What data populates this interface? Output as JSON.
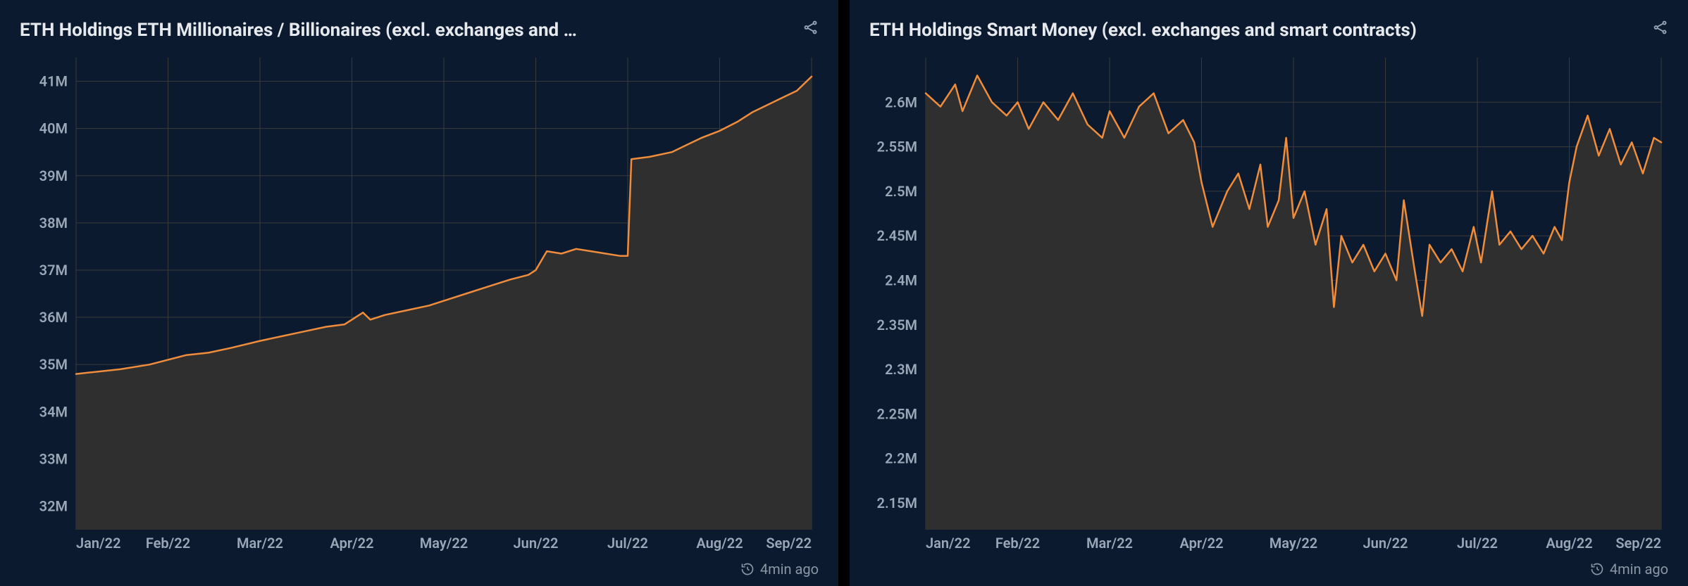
{
  "panels": [
    {
      "title": "ETH Holdings ETH Millionaires / Billionaires (excl. exchanges and …",
      "timestamp": "4min ago",
      "chart": {
        "type": "area",
        "line_color": "#f08d3c",
        "area_color": "#2f2f2f",
        "background_color": "#0b1a2e",
        "grid_color": "#3a3a3a",
        "axis_label_color": "#9aa7b8",
        "axis_fontsize": 20,
        "line_width": 2.5,
        "ylim": [
          31500000,
          41500000
        ],
        "yticks": [
          32000000,
          33000000,
          34000000,
          35000000,
          36000000,
          37000000,
          38000000,
          39000000,
          40000000,
          41000000
        ],
        "ytick_labels": [
          "32M",
          "33M",
          "34M",
          "35M",
          "36M",
          "37M",
          "38M",
          "39M",
          "40M",
          "41M"
        ],
        "x_labels": [
          "Jan/22",
          "Feb/22",
          "Mar/22",
          "Apr/22",
          "May/22",
          "Jun/22",
          "Jul/22",
          "Aug/22",
          "Sep/22"
        ],
        "series": [
          {
            "x": 0.0,
            "y": 34800000
          },
          {
            "x": 0.03,
            "y": 34850000
          },
          {
            "x": 0.06,
            "y": 34900000
          },
          {
            "x": 0.1,
            "y": 35000000
          },
          {
            "x": 0.125,
            "y": 35100000
          },
          {
            "x": 0.15,
            "y": 35200000
          },
          {
            "x": 0.18,
            "y": 35250000
          },
          {
            "x": 0.21,
            "y": 35350000
          },
          {
            "x": 0.25,
            "y": 35500000
          },
          {
            "x": 0.28,
            "y": 35600000
          },
          {
            "x": 0.31,
            "y": 35700000
          },
          {
            "x": 0.34,
            "y": 35800000
          },
          {
            "x": 0.365,
            "y": 35850000
          },
          {
            "x": 0.375,
            "y": 35950000
          },
          {
            "x": 0.39,
            "y": 36100000
          },
          {
            "x": 0.4,
            "y": 35950000
          },
          {
            "x": 0.42,
            "y": 36050000
          },
          {
            "x": 0.45,
            "y": 36150000
          },
          {
            "x": 0.48,
            "y": 36250000
          },
          {
            "x": 0.5,
            "y": 36350000
          },
          {
            "x": 0.53,
            "y": 36500000
          },
          {
            "x": 0.56,
            "y": 36650000
          },
          {
            "x": 0.59,
            "y": 36800000
          },
          {
            "x": 0.615,
            "y": 36900000
          },
          {
            "x": 0.625,
            "y": 37000000
          },
          {
            "x": 0.64,
            "y": 37400000
          },
          {
            "x": 0.66,
            "y": 37350000
          },
          {
            "x": 0.68,
            "y": 37450000
          },
          {
            "x": 0.7,
            "y": 37400000
          },
          {
            "x": 0.72,
            "y": 37350000
          },
          {
            "x": 0.74,
            "y": 37300000
          },
          {
            "x": 0.75,
            "y": 37300000
          },
          {
            "x": 0.755,
            "y": 39350000
          },
          {
            "x": 0.78,
            "y": 39400000
          },
          {
            "x": 0.81,
            "y": 39500000
          },
          {
            "x": 0.83,
            "y": 39650000
          },
          {
            "x": 0.85,
            "y": 39800000
          },
          {
            "x": 0.875,
            "y": 39950000
          },
          {
            "x": 0.9,
            "y": 40150000
          },
          {
            "x": 0.92,
            "y": 40350000
          },
          {
            "x": 0.94,
            "y": 40500000
          },
          {
            "x": 0.96,
            "y": 40650000
          },
          {
            "x": 0.98,
            "y": 40800000
          },
          {
            "x": 1.0,
            "y": 41100000
          }
        ]
      }
    },
    {
      "title": "ETH Holdings Smart Money (excl. exchanges and smart contracts)",
      "timestamp": "4min ago",
      "chart": {
        "type": "area",
        "line_color": "#f08d3c",
        "area_color": "#2f2f2f",
        "background_color": "#0b1a2e",
        "grid_color": "#3a3a3a",
        "axis_label_color": "#9aa7b8",
        "axis_fontsize": 20,
        "line_width": 2.5,
        "ylim": [
          2120000,
          2650000
        ],
        "yticks": [
          2150000,
          2200000,
          2250000,
          2300000,
          2350000,
          2400000,
          2450000,
          2500000,
          2550000,
          2600000
        ],
        "ytick_labels": [
          "2.15M",
          "2.2M",
          "2.25M",
          "2.3M",
          "2.35M",
          "2.4M",
          "2.45M",
          "2.5M",
          "2.55M",
          "2.6M"
        ],
        "x_labels": [
          "Jan/22",
          "Feb/22",
          "Mar/22",
          "Apr/22",
          "May/22",
          "Jun/22",
          "Jul/22",
          "Aug/22",
          "Sep/22"
        ],
        "series": [
          {
            "x": 0.0,
            "y": 2610000
          },
          {
            "x": 0.02,
            "y": 2595000
          },
          {
            "x": 0.04,
            "y": 2620000
          },
          {
            "x": 0.05,
            "y": 2590000
          },
          {
            "x": 0.07,
            "y": 2630000
          },
          {
            "x": 0.09,
            "y": 2600000
          },
          {
            "x": 0.11,
            "y": 2585000
          },
          {
            "x": 0.125,
            "y": 2600000
          },
          {
            "x": 0.14,
            "y": 2570000
          },
          {
            "x": 0.16,
            "y": 2600000
          },
          {
            "x": 0.18,
            "y": 2580000
          },
          {
            "x": 0.2,
            "y": 2610000
          },
          {
            "x": 0.22,
            "y": 2575000
          },
          {
            "x": 0.24,
            "y": 2560000
          },
          {
            "x": 0.25,
            "y": 2590000
          },
          {
            "x": 0.27,
            "y": 2560000
          },
          {
            "x": 0.29,
            "y": 2595000
          },
          {
            "x": 0.31,
            "y": 2610000
          },
          {
            "x": 0.33,
            "y": 2565000
          },
          {
            "x": 0.35,
            "y": 2580000
          },
          {
            "x": 0.365,
            "y": 2555000
          },
          {
            "x": 0.375,
            "y": 2510000
          },
          {
            "x": 0.39,
            "y": 2460000
          },
          {
            "x": 0.41,
            "y": 2500000
          },
          {
            "x": 0.425,
            "y": 2520000
          },
          {
            "x": 0.44,
            "y": 2480000
          },
          {
            "x": 0.455,
            "y": 2530000
          },
          {
            "x": 0.465,
            "y": 2460000
          },
          {
            "x": 0.48,
            "y": 2490000
          },
          {
            "x": 0.49,
            "y": 2560000
          },
          {
            "x": 0.5,
            "y": 2470000
          },
          {
            "x": 0.515,
            "y": 2500000
          },
          {
            "x": 0.53,
            "y": 2440000
          },
          {
            "x": 0.545,
            "y": 2480000
          },
          {
            "x": 0.555,
            "y": 2370000
          },
          {
            "x": 0.565,
            "y": 2450000
          },
          {
            "x": 0.58,
            "y": 2420000
          },
          {
            "x": 0.595,
            "y": 2440000
          },
          {
            "x": 0.61,
            "y": 2410000
          },
          {
            "x": 0.625,
            "y": 2430000
          },
          {
            "x": 0.64,
            "y": 2400000
          },
          {
            "x": 0.65,
            "y": 2490000
          },
          {
            "x": 0.665,
            "y": 2410000
          },
          {
            "x": 0.675,
            "y": 2360000
          },
          {
            "x": 0.685,
            "y": 2440000
          },
          {
            "x": 0.7,
            "y": 2420000
          },
          {
            "x": 0.715,
            "y": 2435000
          },
          {
            "x": 0.73,
            "y": 2410000
          },
          {
            "x": 0.745,
            "y": 2460000
          },
          {
            "x": 0.755,
            "y": 2420000
          },
          {
            "x": 0.77,
            "y": 2500000
          },
          {
            "x": 0.78,
            "y": 2440000
          },
          {
            "x": 0.795,
            "y": 2455000
          },
          {
            "x": 0.81,
            "y": 2435000
          },
          {
            "x": 0.825,
            "y": 2450000
          },
          {
            "x": 0.84,
            "y": 2430000
          },
          {
            "x": 0.855,
            "y": 2460000
          },
          {
            "x": 0.865,
            "y": 2445000
          },
          {
            "x": 0.875,
            "y": 2510000
          },
          {
            "x": 0.885,
            "y": 2550000
          },
          {
            "x": 0.9,
            "y": 2585000
          },
          {
            "x": 0.915,
            "y": 2540000
          },
          {
            "x": 0.93,
            "y": 2570000
          },
          {
            "x": 0.945,
            "y": 2530000
          },
          {
            "x": 0.96,
            "y": 2555000
          },
          {
            "x": 0.975,
            "y": 2520000
          },
          {
            "x": 0.99,
            "y": 2560000
          },
          {
            "x": 1.0,
            "y": 2555000
          }
        ]
      }
    }
  ]
}
